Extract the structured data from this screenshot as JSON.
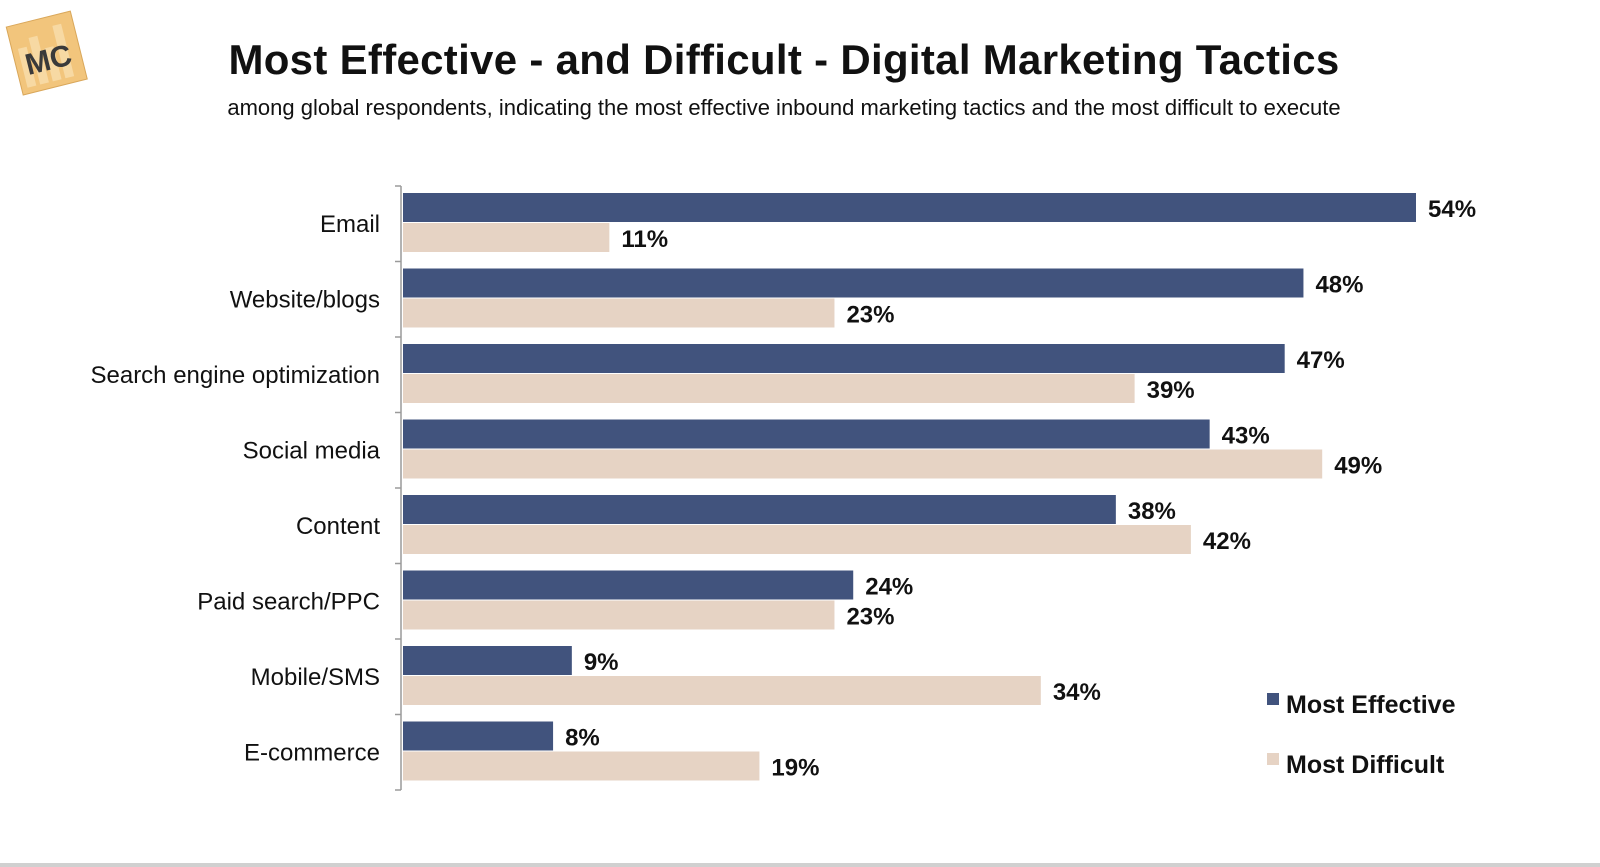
{
  "logo": {
    "text": "MC",
    "color": "#f2c57c"
  },
  "chart_data": {
    "type": "bar",
    "orientation": "horizontal",
    "title": "Most Effective - and Difficult - Digital Marketing Tactics",
    "subtitle": "among global respondents, indicating the most effective inbound marketing tactics and the most difficult to execute",
    "categories": [
      "Email",
      "Website/blogs",
      "Search engine optimization",
      "Social media",
      "Content",
      "Paid search/PPC",
      "Mobile/SMS",
      "E-commerce"
    ],
    "series": [
      {
        "name": "Most Effective",
        "color": "#41537d",
        "values": [
          54,
          48,
          47,
          43,
          38,
          24,
          9,
          8
        ]
      },
      {
        "name": "Most Difficult",
        "color": "#e6d3c4",
        "values": [
          11,
          23,
          39,
          49,
          42,
          23,
          34,
          19
        ]
      }
    ],
    "value_suffix": "%",
    "xlim": [
      0,
      54
    ],
    "xlabel": "",
    "ylabel": "",
    "grid": false,
    "legend_position": "bottom-right"
  }
}
